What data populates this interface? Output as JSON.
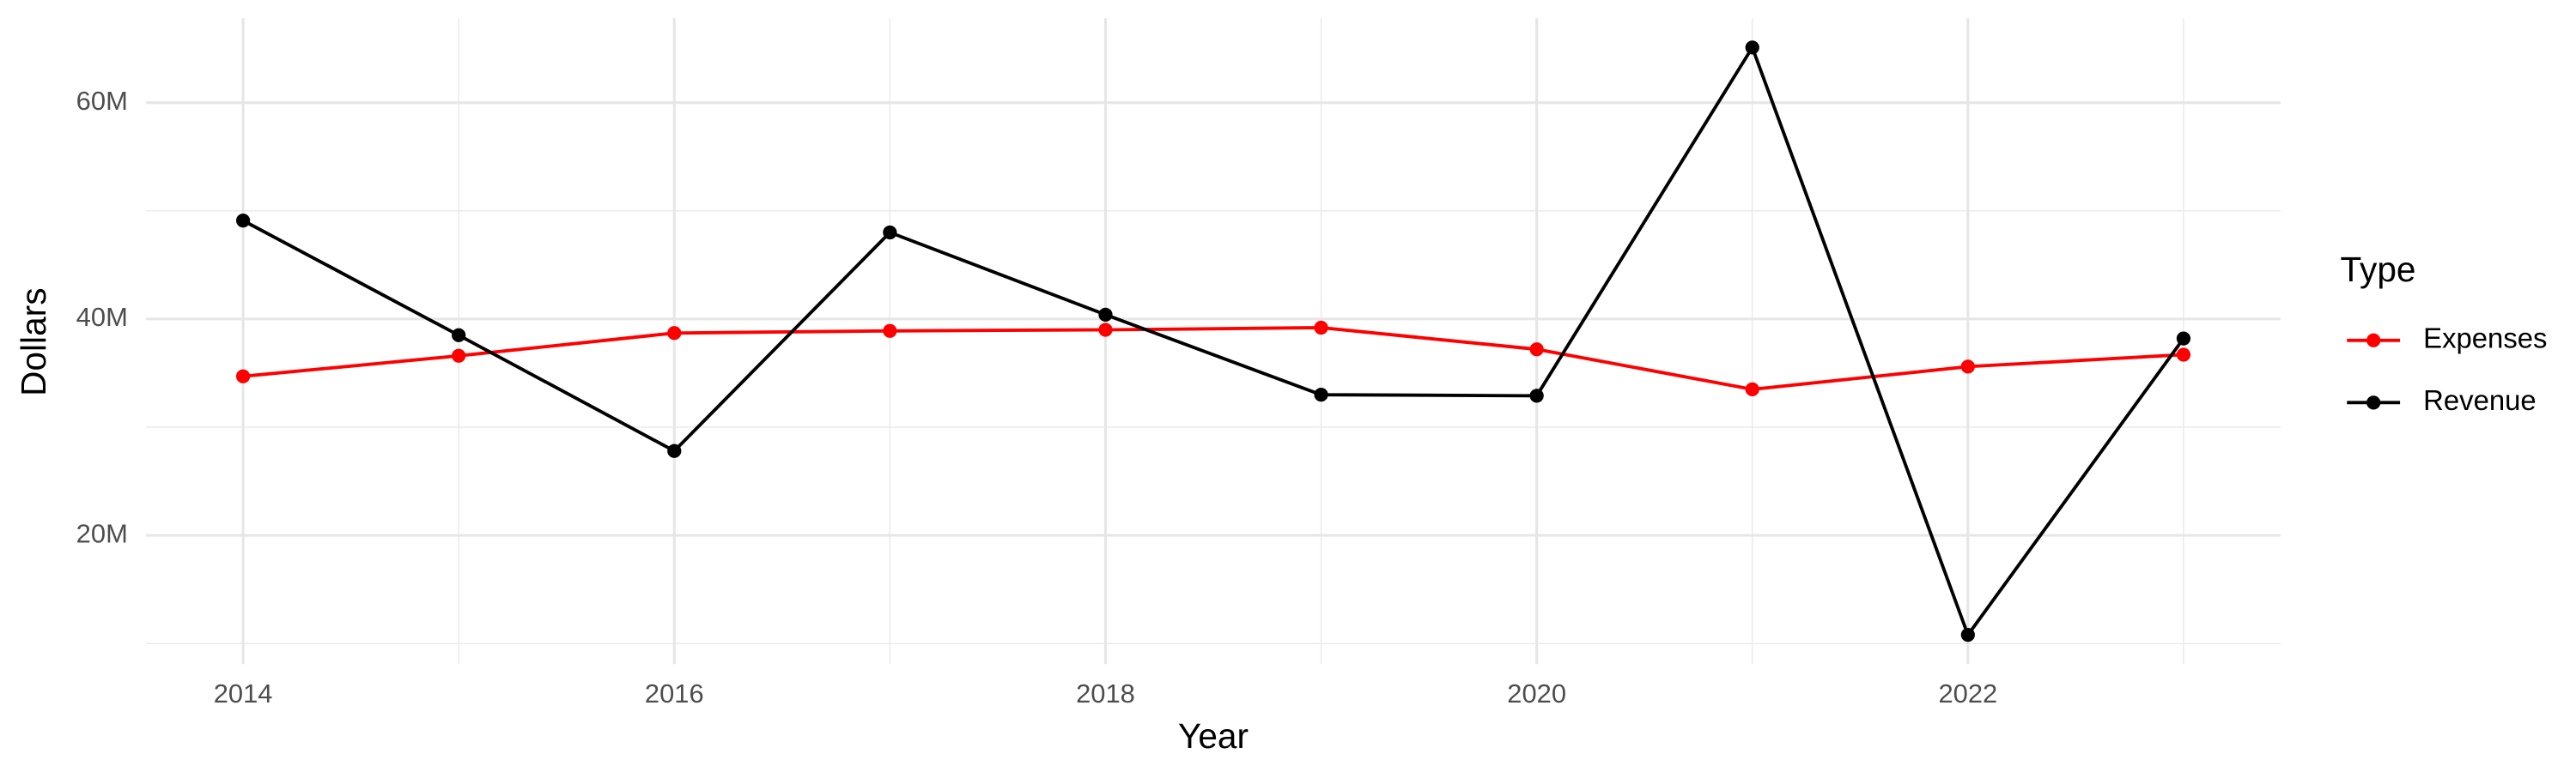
{
  "chart_data": {
    "type": "line",
    "x_label": "Year",
    "y_label": "Dollars",
    "legend_title": "Type",
    "x": [
      2014,
      2015,
      2016,
      2017,
      2018,
      2019,
      2020,
      2021,
      2022,
      2023
    ],
    "series": [
      {
        "name": "Expenses",
        "color": "#ff0000",
        "values": [
          34700000,
          36600000,
          38700000,
          38900000,
          39000000,
          39200000,
          37200000,
          33500000,
          35600000,
          36700000
        ]
      },
      {
        "name": "Revenue",
        "color": "#000000",
        "values": [
          49100000,
          38500000,
          27800000,
          48000000,
          40400000,
          33000000,
          32900000,
          65100000,
          10800000,
          38200000
        ]
      }
    ],
    "xlim": [
      2013.55,
      2023.45
    ],
    "xticks": [
      2014,
      2016,
      2018,
      2020,
      2022
    ],
    "ylim": [
      8100000,
      67800000
    ],
    "yticks": [
      {
        "value": 20000000,
        "label": "20M"
      },
      {
        "value": 40000000,
        "label": "40M"
      },
      {
        "value": 60000000,
        "label": "60M"
      }
    ],
    "grid": true,
    "legend": "right"
  }
}
